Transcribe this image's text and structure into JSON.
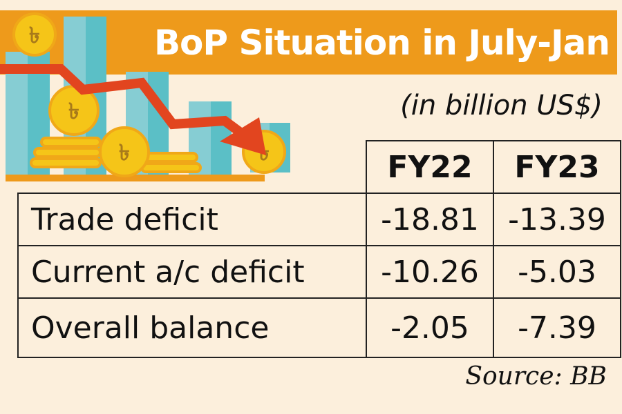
{
  "header": {
    "title": "BoP Situation in July-Jan",
    "unit": "(in billion US$)"
  },
  "colors": {
    "band": "#ee9a1b",
    "background": "#fcefdc",
    "bars": "#5bbfc6",
    "arrow": "#e2451f",
    "coins": "#f5c518"
  },
  "icons": [
    "bar-chart-icon",
    "taka-coin-icon",
    "down-trend-arrow-icon"
  ],
  "chart_data": {
    "type": "table",
    "title": "BoP Situation in July-Jan",
    "unit": "(in billion US$)",
    "columns": [
      "FY22",
      "FY23"
    ],
    "rows": [
      {
        "label": "Trade deficit",
        "values": [
          "-18.81",
          "-13.39"
        ]
      },
      {
        "label": "Current a/c deficit",
        "values": [
          "-10.26",
          "-5.03"
        ]
      },
      {
        "label": "Overall balance",
        "values": [
          "-2.05",
          "-7.39"
        ]
      }
    ],
    "source": "Source: BB"
  }
}
